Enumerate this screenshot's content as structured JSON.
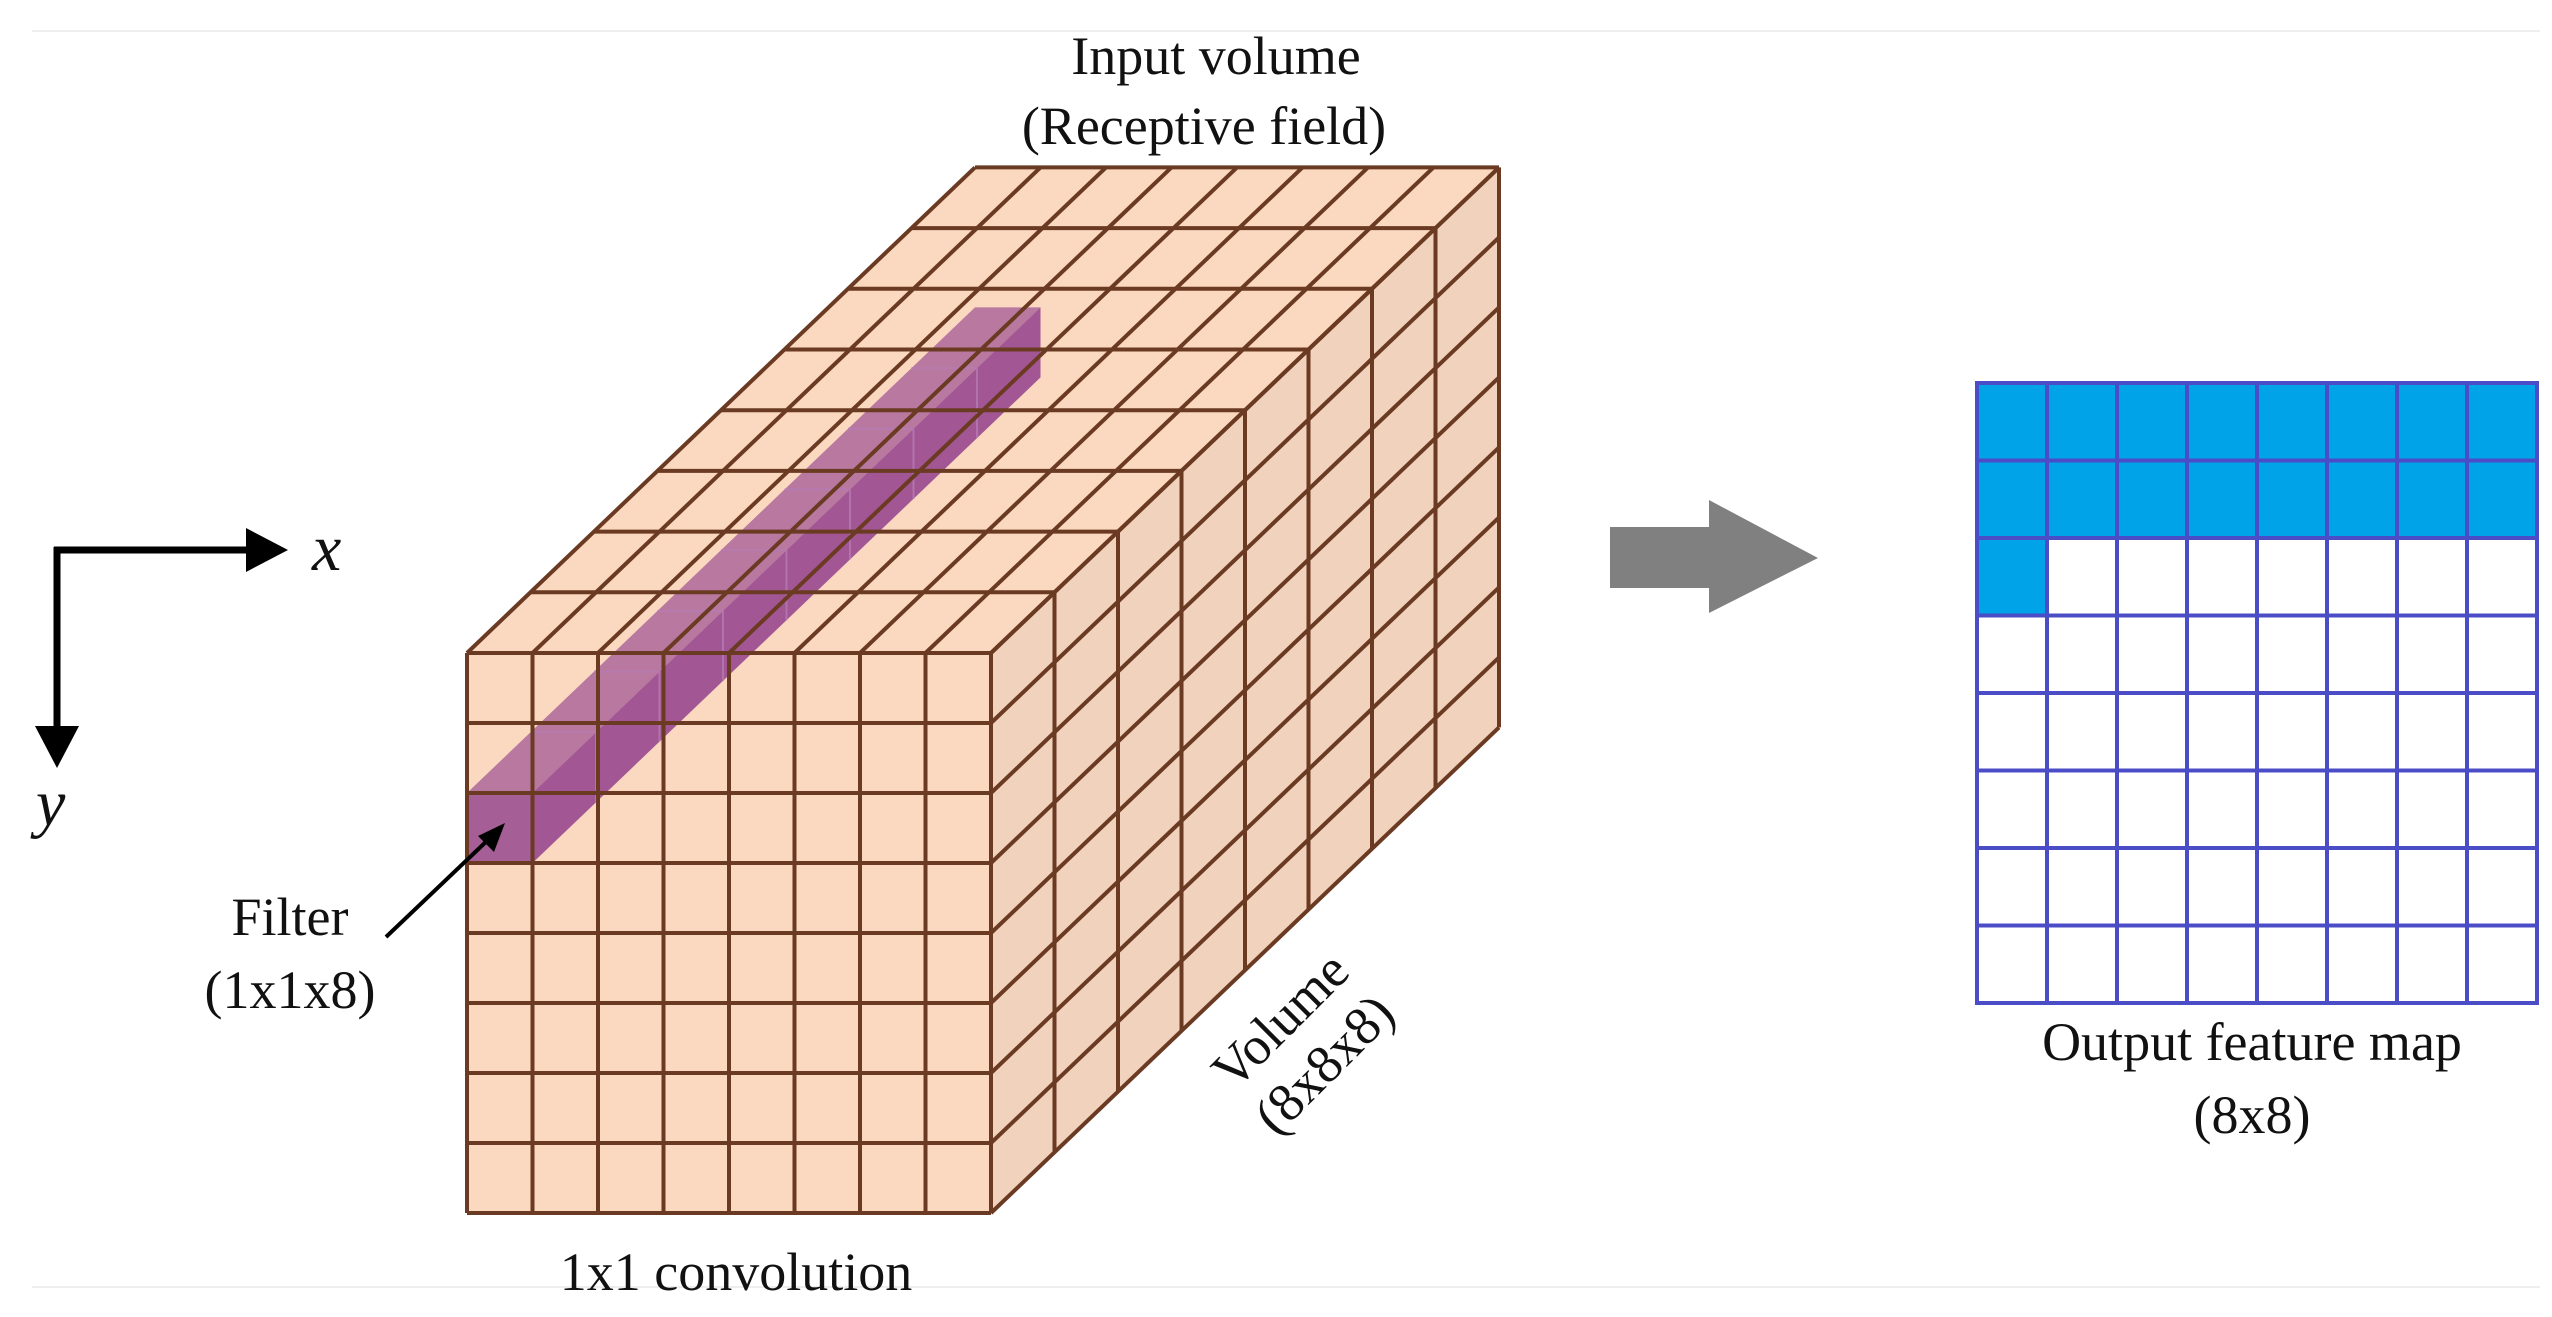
{
  "labels": {
    "input_title": "Input volume",
    "input_subtitle": "(Receptive field)",
    "x_axis": "x",
    "y_axis": "y",
    "filter_title": "Filter",
    "filter_size": "(1x1x8)",
    "volume_title": "Volume",
    "volume_size": "(8x8x8)",
    "conv_caption": "1x1 convolution",
    "output_title": "Output feature map",
    "output_size": "(8x8)"
  },
  "volume": {
    "width": 8,
    "height": 8,
    "depth": 8,
    "face_color": "#fbd9c0",
    "side_color": "#f0d2bd",
    "top_color": "#fbd9c0",
    "line_color": "#6b3a22"
  },
  "filter": {
    "column": 0,
    "row": 2,
    "depth": 8,
    "color": "#8e3b8a"
  },
  "output_map": {
    "rows": 8,
    "cols": 8,
    "filled_cells": 17,
    "fill_color": "#00a2e8",
    "line_color": "#4b4dc6"
  },
  "arrow_color": "#808080",
  "axis_color": "#000000"
}
